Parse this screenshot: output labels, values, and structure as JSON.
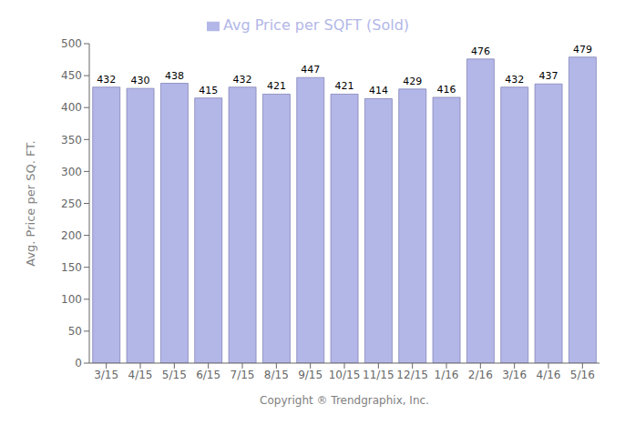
{
  "chart_data": {
    "type": "bar",
    "categories": [
      "3/15",
      "4/15",
      "5/15",
      "6/15",
      "7/15",
      "8/15",
      "9/15",
      "10/15",
      "11/15",
      "12/15",
      "1/16",
      "2/16",
      "3/16",
      "4/16",
      "5/16"
    ],
    "series": [
      {
        "name": "Avg Price per SQFT (Sold)",
        "color": "#b3b7e8",
        "values": [
          432,
          430,
          438,
          415,
          432,
          421,
          447,
          421,
          414,
          429,
          416,
          476,
          432,
          437,
          479
        ]
      }
    ],
    "ylim": [
      0,
      500
    ],
    "yticks": [
      0,
      50,
      100,
      150,
      200,
      250,
      300,
      350,
      400,
      450,
      500
    ],
    "ylabel": "Avg. Price per SQ. FT.",
    "xlabel": "Copyright ® Trendgraphix, Inc.",
    "legend": "top",
    "data_labels": true,
    "grid": false
  }
}
